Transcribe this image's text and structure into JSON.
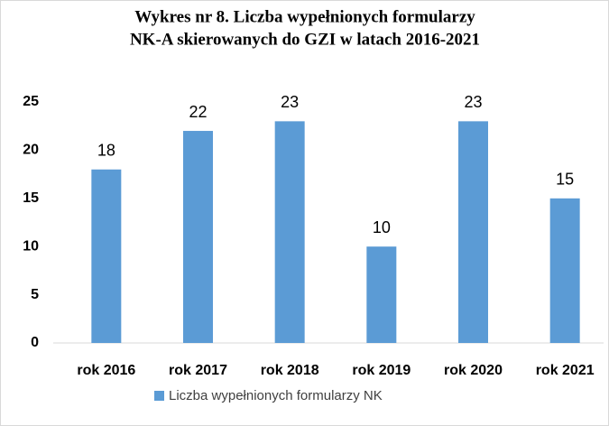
{
  "chart_data": {
    "type": "bar",
    "title": [
      "Wykres nr 8. Liczba wypełnionych formularzy",
      "NK-A skierowanych do GZI w latach 2016-2021"
    ],
    "categories": [
      "rok 2016",
      "rok 2017",
      "rok 2018",
      "rok 2019",
      "rok 2020",
      "rok 2021"
    ],
    "series": [
      {
        "name": "Liczba wypełnionych formularzy NK",
        "color": "#5b9bd5",
        "values": [
          18,
          22,
          23,
          10,
          23,
          15
        ]
      }
    ],
    "ylim": [
      0,
      25
    ],
    "yticks": [
      0,
      5,
      10,
      15,
      20,
      25
    ],
    "grid": false,
    "legend": "bottom"
  }
}
